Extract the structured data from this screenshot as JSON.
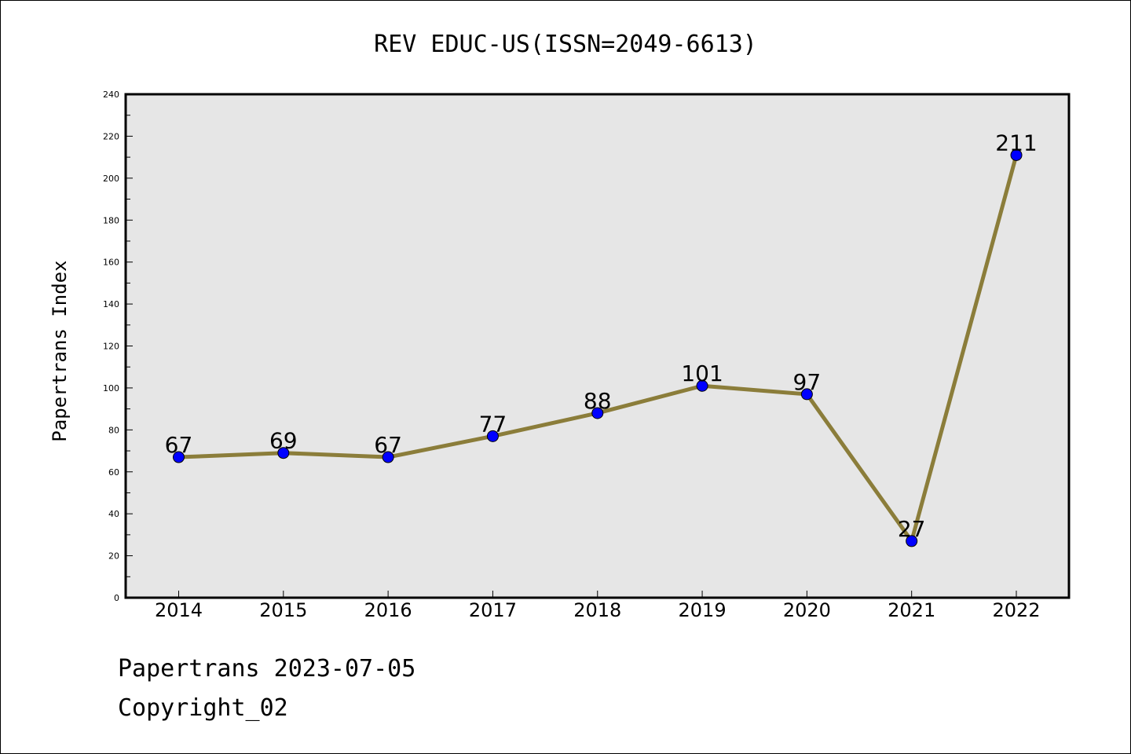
{
  "chart_data": {
    "type": "line",
    "title": "REV EDUC-US(ISSN=2049-6613)",
    "xlabel": "",
    "ylabel": "Papertrans Index",
    "categories": [
      "2014",
      "2015",
      "2016",
      "2017",
      "2018",
      "2019",
      "2020",
      "2021",
      "2022"
    ],
    "values": [
      67,
      69,
      67,
      77,
      88,
      101,
      97,
      27,
      211
    ],
    "data_labels": [
      "67",
      "69",
      "67",
      "77",
      "88",
      "101",
      "97",
      "27",
      "211"
    ],
    "ylim": [
      0,
      240
    ],
    "y_ticks": [
      "0",
      "20",
      "40",
      "60",
      "80",
      "100",
      "120",
      "140",
      "160",
      "180",
      "200",
      "220",
      "240"
    ],
    "grid": false,
    "legend": "none",
    "colors": {
      "line": "#8b7d3a",
      "marker": "#0000ff",
      "plot_background": "#e6e6e6",
      "axis": "#000000"
    }
  },
  "footer": {
    "date_line": "Papertrans 2023-07-05",
    "copyright_line": "Copyright_02"
  }
}
